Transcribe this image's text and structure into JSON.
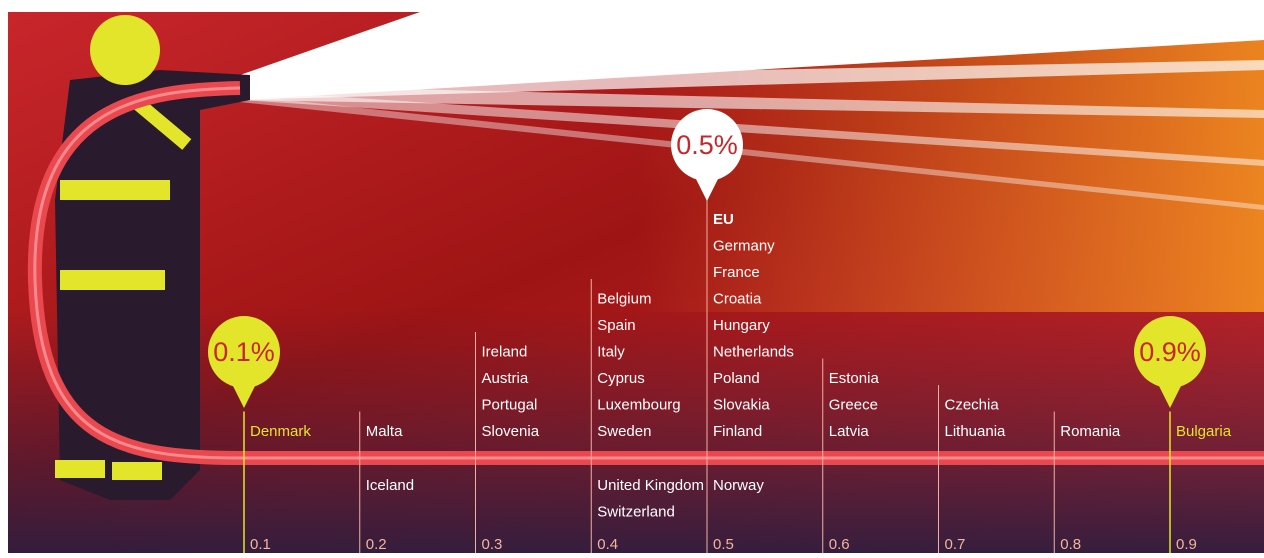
{
  "chart_data": {
    "type": "strip",
    "xlim": [
      0.1,
      0.9
    ],
    "xticks": [
      0.1,
      0.2,
      0.3,
      0.4,
      0.5,
      0.6,
      0.7,
      0.8,
      0.9
    ],
    "highlight_color": "#e3e52a",
    "groups": [
      {
        "value": 0.1,
        "above": [
          "Denmark"
        ],
        "highlight": true
      },
      {
        "value": 0.2,
        "above": [
          "Malta"
        ],
        "below": [
          "Iceland"
        ]
      },
      {
        "value": 0.3,
        "above": [
          "Ireland",
          "Austria",
          "Portugal",
          "Slovenia"
        ]
      },
      {
        "value": 0.4,
        "above": [
          "Belgium",
          "Spain",
          "Italy",
          "Cyprus",
          "Luxembourg",
          "Sweden"
        ],
        "below": [
          "United Kingdom",
          "Switzerland"
        ]
      },
      {
        "value": 0.5,
        "above": [
          "EU",
          "Germany",
          "France",
          "Croatia",
          "Hungary",
          "Netherlands",
          "Poland",
          "Slovakia",
          "Finland"
        ],
        "below": [
          "Norway"
        ]
      },
      {
        "value": 0.6,
        "above": [
          "Estonia",
          "Greece",
          "Latvia"
        ]
      },
      {
        "value": 0.7,
        "above": [
          "Czechia",
          "Lithuania"
        ]
      },
      {
        "value": 0.8,
        "above": [
          "Romania"
        ]
      },
      {
        "value": 0.9,
        "above": [
          "Bulgaria"
        ],
        "highlight": true
      }
    ],
    "callouts": [
      {
        "value": 0.1,
        "label": "0.1%",
        "color": "#e3e52a"
      },
      {
        "value": 0.5,
        "label": "0.5%",
        "color": "#ffffff"
      },
      {
        "value": 0.9,
        "label": "0.9%",
        "color": "#e3e52a"
      }
    ]
  }
}
